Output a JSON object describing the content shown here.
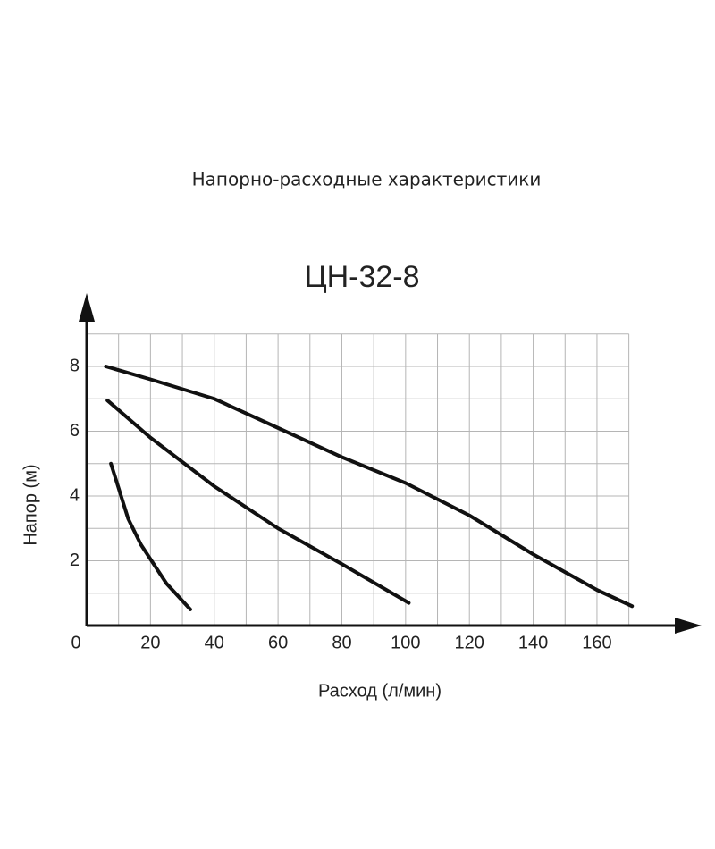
{
  "chart_data": {
    "type": "line",
    "subtitle": "Напорно-расходные характеристики",
    "title": "ЦН-32-8",
    "x_label": "Расход (л/мин)",
    "y_label": "Напор (м)",
    "xlim": [
      0,
      190
    ],
    "ylim": [
      0,
      10
    ],
    "xticks": [
      0,
      20,
      40,
      60,
      80,
      100,
      120,
      140,
      160
    ],
    "yticks": [
      2,
      4,
      6,
      8
    ],
    "x_gridlines": [
      10,
      20,
      30,
      40,
      50,
      60,
      70,
      80,
      90,
      100,
      110,
      120,
      130,
      140,
      150,
      160,
      170
    ],
    "y_gridlines": [
      1,
      2,
      3,
      4,
      5,
      6,
      7,
      8,
      9
    ],
    "grid": true,
    "series": [
      {
        "color": "#111111",
        "x": [
          6,
          20,
          40,
          60,
          80,
          100,
          120,
          140,
          160,
          171
        ],
        "values": [
          8,
          7.6,
          7.0,
          6.1,
          5.2,
          4.4,
          3.4,
          2.2,
          1.1,
          0.6
        ]
      },
      {
        "color": "#111111",
        "x": [
          6.5,
          20,
          40,
          60,
          80,
          101
        ],
        "values": [
          6.95,
          5.8,
          4.3,
          3.0,
          1.9,
          0.7
        ]
      },
      {
        "color": "#111111",
        "x": [
          7.6,
          13,
          17,
          21,
          25,
          32.5
        ],
        "values": [
          5,
          3.3,
          2.5,
          1.9,
          1.3,
          0.5
        ]
      }
    ]
  }
}
